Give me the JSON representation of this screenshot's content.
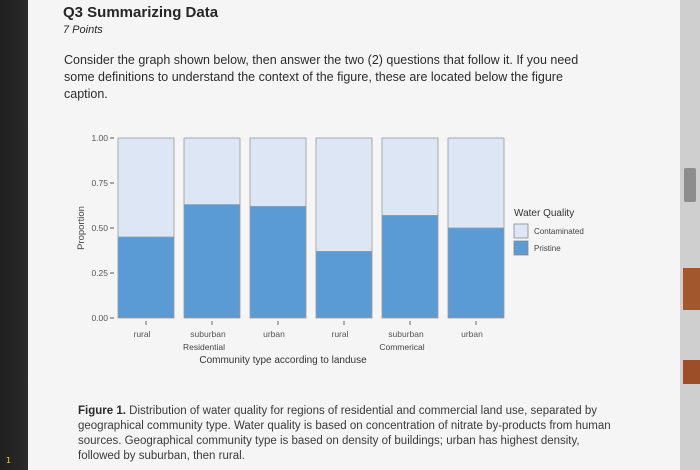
{
  "question": {
    "title": "Q3 Summarizing Data",
    "points": "7 Points",
    "instructions": "Consider the graph shown below, then answer the two (2) questions that follow it. If you need some definitions to understand the context of the figure, these are located below the figure caption."
  },
  "chart_data": {
    "type": "bar",
    "stacked": true,
    "categories": [
      "rural",
      "suburban",
      "urban",
      "rural",
      "suburban",
      "urban"
    ],
    "groups": [
      {
        "label": "Residential",
        "categories": [
          "rural",
          "suburban",
          "urban"
        ]
      },
      {
        "label": "Commerical",
        "categories": [
          "rural",
          "suburban",
          "urban"
        ]
      }
    ],
    "series": [
      {
        "name": "Pristine",
        "color": "#5b9bd5",
        "values": [
          0.45,
          0.63,
          0.62,
          0.37,
          0.57,
          0.5
        ]
      },
      {
        "name": "Contaminated",
        "color": "#dce6f5",
        "values": [
          0.55,
          0.37,
          0.38,
          0.63,
          0.43,
          0.5
        ]
      }
    ],
    "ylabel": "Proportion",
    "xlabel": "Community type according to landuse",
    "ylim": [
      0,
      1
    ],
    "yticks": [
      "0.00",
      "0.25",
      "0.50",
      "0.75",
      "1.00"
    ],
    "legend": {
      "title": "Water Quality",
      "position": "right"
    },
    "grid": false
  },
  "caption": {
    "label": "Figure 1.",
    "text": " Distribution of water quality for regions of residential and commercial land use, separated by geographical community type. Water quality is based on concentration of nitrate by-products from human sources. Geographical community type is based on density of buildings; urban has highest density, followed by suburban, then rural."
  },
  "side": {
    "left_number": "1"
  }
}
